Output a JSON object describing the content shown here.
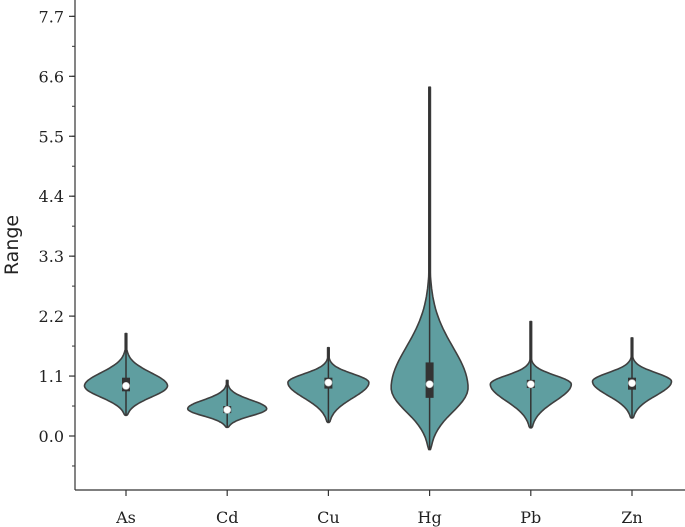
{
  "chart_data": {
    "type": "violin",
    "title": "",
    "xlabel": "",
    "ylabel": "Range",
    "ylim": [
      -0.55,
      8.0
    ],
    "yticks": [
      "0.0",
      "1.1",
      "2.2",
      "3.3",
      "4.4",
      "5.5",
      "6.6",
      "7.7"
    ],
    "categories": [
      "As",
      "Cd",
      "Cu",
      "Hg",
      "Pb",
      "Zn"
    ],
    "grid": false,
    "colors": {
      "fill": "#5f9ea0",
      "outline": "#3f3f3f",
      "box": "#333333",
      "median": "#ffffff"
    },
    "violins": [
      {
        "name": "As",
        "min": 0.38,
        "q1": 0.82,
        "median": 0.92,
        "q3": 1.07,
        "max": 1.88,
        "peak": 0.92,
        "halfwidth": 0.41
      },
      {
        "name": "Cd",
        "min": 0.16,
        "q1": 0.42,
        "median": 0.48,
        "q3": 0.55,
        "max": 1.02,
        "peak": 0.5,
        "halfwidth": 0.39
      },
      {
        "name": "Cu",
        "min": 0.25,
        "q1": 0.87,
        "median": 0.98,
        "q3": 1.07,
        "max": 1.62,
        "peak": 0.98,
        "halfwidth": 0.4
      },
      {
        "name": "Hg",
        "min": -0.25,
        "q1": 0.7,
        "median": 0.95,
        "q3": 1.35,
        "max": 6.4,
        "peak": 0.88,
        "halfwidth": 0.38
      },
      {
        "name": "Pb",
        "min": 0.15,
        "q1": 0.88,
        "median": 0.95,
        "q3": 1.03,
        "max": 2.1,
        "peak": 0.95,
        "halfwidth": 0.4
      },
      {
        "name": "Zn",
        "min": 0.33,
        "q1": 0.85,
        "median": 0.97,
        "q3": 1.07,
        "max": 1.8,
        "peak": 1.0,
        "halfwidth": 0.39
      }
    ]
  }
}
